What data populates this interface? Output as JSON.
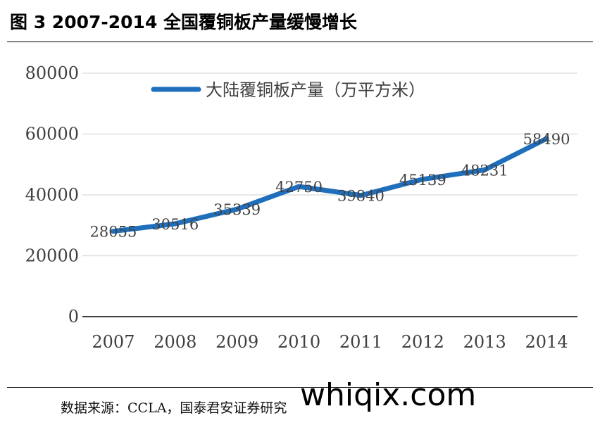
{
  "figure_title": "图 3 2007-2014 全国覆铜板产量缓慢增长",
  "source_text": "数据来源：CCLA，国泰君安证券研究",
  "watermark_text": "whiqix.com",
  "colors": {
    "series": "#1f6fbd",
    "grid": "#d9d9d9",
    "axis": "#000000",
    "text": "#404040"
  },
  "chart_data": {
    "type": "line",
    "x": [
      "2007",
      "2008",
      "2009",
      "2010",
      "2011",
      "2012",
      "2013",
      "2014"
    ],
    "series": [
      {
        "name": "大陆覆铜板产量（万平方米）",
        "values": [
          28055,
          30516,
          35339,
          42750,
          39840,
          45139,
          48231,
          58490
        ]
      }
    ],
    "data_labels": [
      "28055",
      "30516",
      "35339",
      "42750",
      "39840",
      "45139",
      "48231",
      "58490"
    ],
    "ylim": [
      0,
      80000
    ],
    "yticks": [
      0,
      20000,
      40000,
      60000,
      80000
    ],
    "ytick_labels": [
      "0",
      "20000",
      "40000",
      "60000",
      "80000"
    ],
    "grid": true,
    "legend_position": "top-center"
  }
}
